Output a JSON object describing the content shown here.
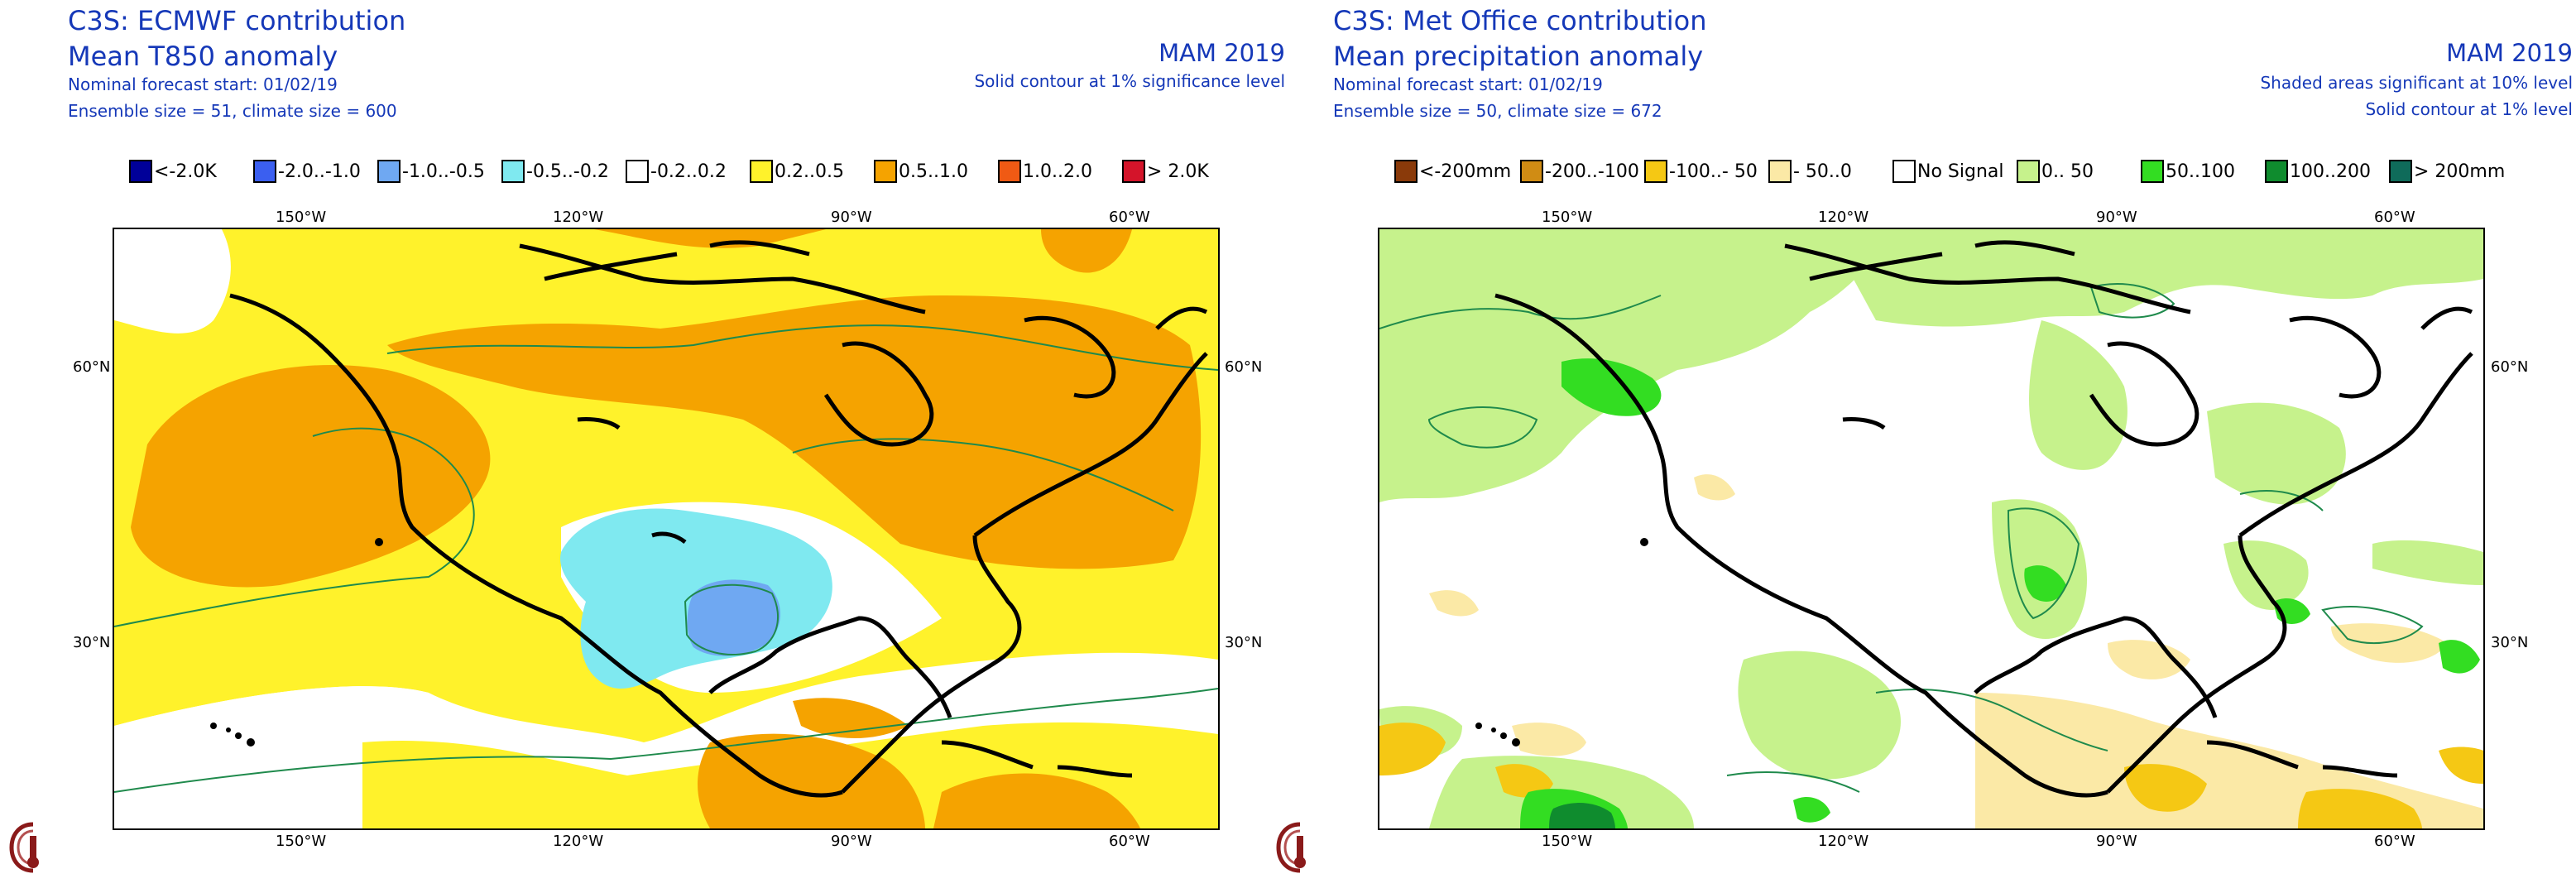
{
  "panels": [
    {
      "title": "C3S: ECMWF contribution",
      "subtitle": "Mean T850 anomaly",
      "forecast_start": "Nominal forecast start: 01/02/19",
      "ensemble": "Ensemble size = 51, climate size = 600",
      "season": "MAM 2019",
      "significance_1": "Solid contour at 1% significance level",
      "significance_2": "",
      "legend": [
        {
          "label": "<-2.0K",
          "color": "#000099"
        },
        {
          "label": "-2.0..-1.0",
          "color": "#3b5ff0"
        },
        {
          "label": "-1.0..-0.5",
          "color": "#6fa8f2"
        },
        {
          "label": "-0.5..-0.2",
          "color": "#7fe9f0"
        },
        {
          "label": "-0.2..0.2",
          "color": "#ffffff"
        },
        {
          "label": "0.2..0.5",
          "color": "#fff22b"
        },
        {
          "label": "0.5..1.0",
          "color": "#f5a300"
        },
        {
          "label": "1.0..2.0",
          "color": "#f05a14"
        },
        {
          "label": "> 2.0K",
          "color": "#d4142a"
        }
      ],
      "lon_ticks": [
        "150°W",
        "120°W",
        "90°W",
        "60°W"
      ],
      "lat_ticks": [
        "60°N",
        "30°N"
      ]
    },
    {
      "title": "C3S: Met Office contribution",
      "subtitle": "Mean precipitation anomaly",
      "forecast_start": "Nominal forecast start: 01/02/19",
      "ensemble": "Ensemble size = 50, climate size = 672",
      "season": "MAM 2019",
      "significance_1": "Shaded areas significant at 10% level",
      "significance_2": "Solid contour at 1% level",
      "legend": [
        {
          "label": "<-200mm",
          "color": "#8a3a0a"
        },
        {
          "label": "-200..-100",
          "color": "#d08c14"
        },
        {
          "label": "-100..- 50",
          "color": "#f5c814"
        },
        {
          "label": "- 50..0",
          "color": "#fbe9a6"
        },
        {
          "label": "No Signal",
          "color": "#ffffff"
        },
        {
          "label": "0.. 50",
          "color": "#c6f28c"
        },
        {
          "label": "50..100",
          "color": "#33dd22"
        },
        {
          "label": "100..200",
          "color": "#0f8c2e"
        },
        {
          "label": "> 200mm",
          "color": "#0f6b5a"
        }
      ],
      "lon_ticks": [
        "150°W",
        "120°W",
        "90°W",
        "60°W"
      ],
      "lat_ticks": [
        "60°N",
        "30°N"
      ]
    }
  ]
}
